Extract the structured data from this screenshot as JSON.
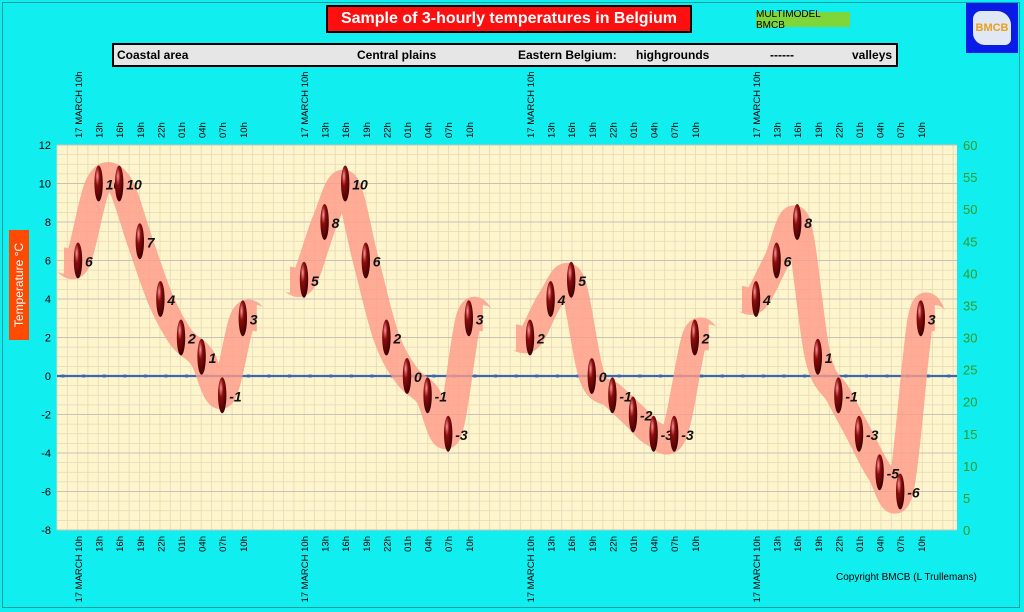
{
  "header": {
    "title": "Sample of 3-hourly temperatures in Belgium",
    "badge": "MULTIMODEL BMCB",
    "logo_icon": "bmcb-logo-icon",
    "logo_text": "BMCB"
  },
  "regions": {
    "coastal": "Coastal area",
    "central": "Central plains",
    "eastern": "Eastern Belgium:",
    "highgrounds": "highgrounds",
    "dash": "------",
    "valleys": "valleys"
  },
  "footer": {
    "copyright": "Copyright BMCB (L Trullemans)"
  },
  "chart_data": {
    "type": "line",
    "ylabel": "Temperature  °C",
    "ylim": [
      -8,
      12
    ],
    "y_ticks": [
      -8,
      -6,
      -4,
      -2,
      0,
      2,
      4,
      6,
      8,
      10,
      12
    ],
    "y2lim": [
      0,
      60
    ],
    "y2_ticks": [
      0,
      5,
      10,
      15,
      20,
      25,
      30,
      35,
      40,
      45,
      50,
      55,
      60
    ],
    "grid": true,
    "categories": [
      "17 MARCH 10h",
      "13h",
      "16h",
      "19h",
      "22h",
      "01h",
      "04h",
      "07h",
      "10h"
    ],
    "series": [
      {
        "name": "Coastal area",
        "values": [
          6,
          10,
          10,
          7,
          4,
          2,
          1,
          -1,
          3
        ]
      },
      {
        "name": "Central plains",
        "values": [
          5,
          8,
          10,
          6,
          2,
          0,
          -1,
          -3,
          3
        ]
      },
      {
        "name": "highgrounds",
        "values": [
          2,
          4,
          5,
          0,
          -1,
          -2,
          -3,
          -3,
          2
        ]
      },
      {
        "name": "valleys",
        "values": [
          4,
          6,
          8,
          1,
          -1,
          -3,
          -5,
          -6,
          3
        ]
      }
    ],
    "colors": {
      "band": "#ff9a8a",
      "marker": "#8b0d0d",
      "zero_line": "#3d67b0",
      "plot_bg": "#fff5cc",
      "grid": "#e6d8b8",
      "axis_right": "#2f9a2f"
    }
  }
}
